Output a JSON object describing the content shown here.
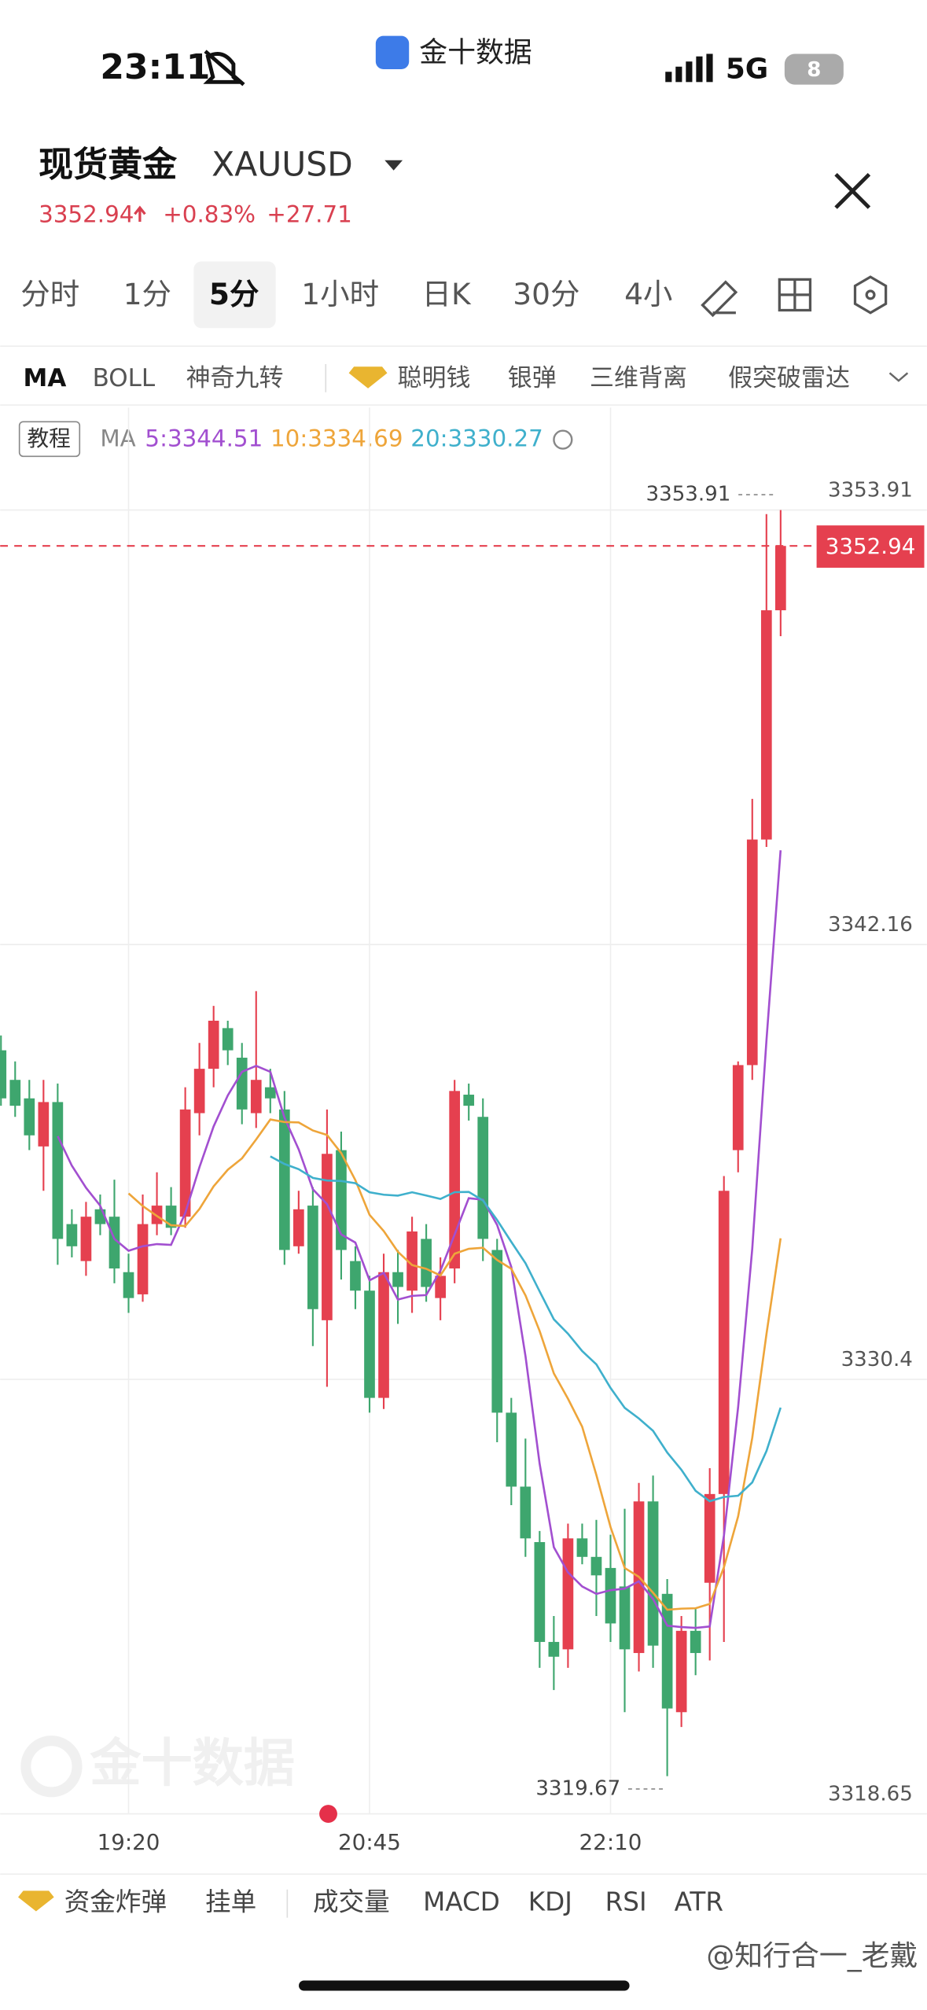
{
  "status_bar": {
    "time": "23:11",
    "app": "金十数据",
    "network": "5G",
    "battery": "8"
  },
  "header": {
    "title": "现货黄金",
    "symbol": "XAUUSD",
    "price": "3352.94",
    "change_pct": "+0.83%",
    "change": "+27.71"
  },
  "tabs": [
    "分时",
    "1分",
    "5分",
    "1小时",
    "日K",
    "30分",
    "4小"
  ],
  "indicators": [
    "MA",
    "BOLL",
    "神奇九转",
    "聪明钱",
    "银弹",
    "三维背离",
    "假突破雷达"
  ],
  "legend": {
    "tutorial": "教程",
    "ma": "MA"
  },
  "bottom_tabs": [
    "资金炸弹",
    "挂单",
    "成交量",
    "MACD",
    "KDJ",
    "RSI",
    "ATR"
  ],
  "watermark": "金十数据",
  "credit": "@知行合一_老戴",
  "chart_data": {
    "type": "candlestick",
    "categories": [
      null,
      null,
      null,
      null,
      null,
      null,
      null,
      null,
      null,
      "19:20",
      null,
      null,
      null,
      null,
      null,
      null,
      null,
      null,
      null,
      null,
      null,
      null,
      null,
      null,
      null,
      null,
      "20:45",
      null,
      null,
      null,
      null,
      null,
      null,
      null,
      null,
      null,
      null,
      null,
      null,
      null,
      null,
      null,
      null,
      "22:10",
      null,
      null,
      null,
      null,
      null,
      null,
      null,
      null,
      null,
      null,
      null,
      null
    ],
    "open": [
      3339.3,
      3338.5,
      3338.0,
      3336.7,
      3337.9,
      3334.6,
      3333.6,
      3335.0,
      3334.8,
      3333.3,
      3332.7,
      3334.6,
      3335.1,
      3334.8,
      3337.6,
      3338.8,
      3339.9,
      3339.1,
      3337.6,
      3338.3,
      3337.7,
      3334.0,
      3335.1,
      3332.0,
      3336.6,
      3333.6,
      3332.8,
      3329.9,
      3333.3,
      3332.8,
      3334.2,
      3332.6,
      3333.4,
      3338.1,
      3337.5,
      3333.9,
      3329.5,
      3327.5,
      3326.0,
      3323.3,
      3323.1,
      3326.1,
      3325.6,
      3325.3,
      3324.8,
      3323.0,
      3327.1,
      3324.6,
      3321.4,
      3323.6,
      3324.9,
      3327.3,
      3336.6,
      3338.9,
      3345.0,
      3351.2
    ],
    "high": [
      3339.7,
      3339.0,
      3338.5,
      3338.5,
      3338.4,
      3335.0,
      3335.2,
      3335.4,
      3335.8,
      3333.8,
      3335.4,
      3336.0,
      3335.6,
      3338.3,
      3339.5,
      3340.5,
      3340.1,
      3339.5,
      3340.9,
      3338.8,
      3338.2,
      3335.5,
      3335.6,
      3337.7,
      3337.1,
      3334.0,
      3333.2,
      3333.8,
      3333.9,
      3334.8,
      3334.6,
      3333.7,
      3338.5,
      3338.4,
      3338.0,
      3334.2,
      3329.9,
      3328.8,
      3326.3,
      3324.0,
      3326.5,
      3326.5,
      3326.6,
      3326.2,
      3326.9,
      3327.6,
      3327.8,
      3325.0,
      3324.0,
      3324.2,
      3328.0,
      3335.9,
      3339.0,
      3346.1,
      3353.8,
      3353.91
    ],
    "low": [
      3337.8,
      3337.5,
      3336.6,
      3335.5,
      3333.5,
      3333.7,
      3333.2,
      3334.3,
      3333.0,
      3332.2,
      3332.5,
      3334.3,
      3334.3,
      3334.5,
      3337.0,
      3338.3,
      3338.9,
      3337.3,
      3337.2,
      3337.6,
      3333.5,
      3333.8,
      3331.3,
      3330.2,
      3333.1,
      3332.3,
      3329.5,
      3329.6,
      3331.9,
      3332.2,
      3332.5,
      3332.0,
      3333.0,
      3337.4,
      3333.6,
      3328.7,
      3327.0,
      3325.6,
      3322.6,
      3322.0,
      3322.6,
      3325.4,
      3324.0,
      3323.3,
      3321.4,
      3322.5,
      3322.6,
      3319.67,
      3321.0,
      3322.4,
      3322.8,
      3323.3,
      3336.0,
      3338.5,
      3344.8,
      3350.5
    ],
    "close": [
      3338.0,
      3337.8,
      3337.0,
      3337.9,
      3334.2,
      3334.0,
      3334.8,
      3334.6,
      3333.4,
      3332.6,
      3334.6,
      3335.1,
      3334.5,
      3337.7,
      3338.8,
      3340.1,
      3339.3,
      3337.7,
      3338.5,
      3338.0,
      3333.9,
      3335.0,
      3332.3,
      3336.5,
      3333.9,
      3332.8,
      3329.9,
      3333.3,
      3332.9,
      3334.4,
      3332.9,
      3333.2,
      3338.2,
      3337.8,
      3334.2,
      3329.5,
      3327.5,
      3326.1,
      3323.3,
      3322.9,
      3326.1,
      3325.6,
      3325.1,
      3323.8,
      3323.1,
      3327.1,
      3323.2,
      3321.5,
      3323.6,
      3323.0,
      3327.3,
      3335.5,
      3338.9,
      3345.0,
      3351.2,
      3352.94
    ],
    "up_color": "#e5404f",
    "down_color": "#3ea66e",
    "ma": [
      {
        "label": "5:3344.51",
        "period": 5,
        "color": "#a24fd0"
      },
      {
        "label": "10:3334.69",
        "period": 10,
        "color": "#eea53a"
      },
      {
        "label": "20:3330.27",
        "period": 20,
        "color": "#3fb0cc"
      }
    ],
    "high_label": 3353.91,
    "low_label": 3319.67,
    "last": 3352.94,
    "ylim": [
      3318.65,
      3356.68
    ],
    "yticks": [
      3318.65,
      3330.4,
      3342.16,
      3353.91
    ],
    "grid": true
  }
}
